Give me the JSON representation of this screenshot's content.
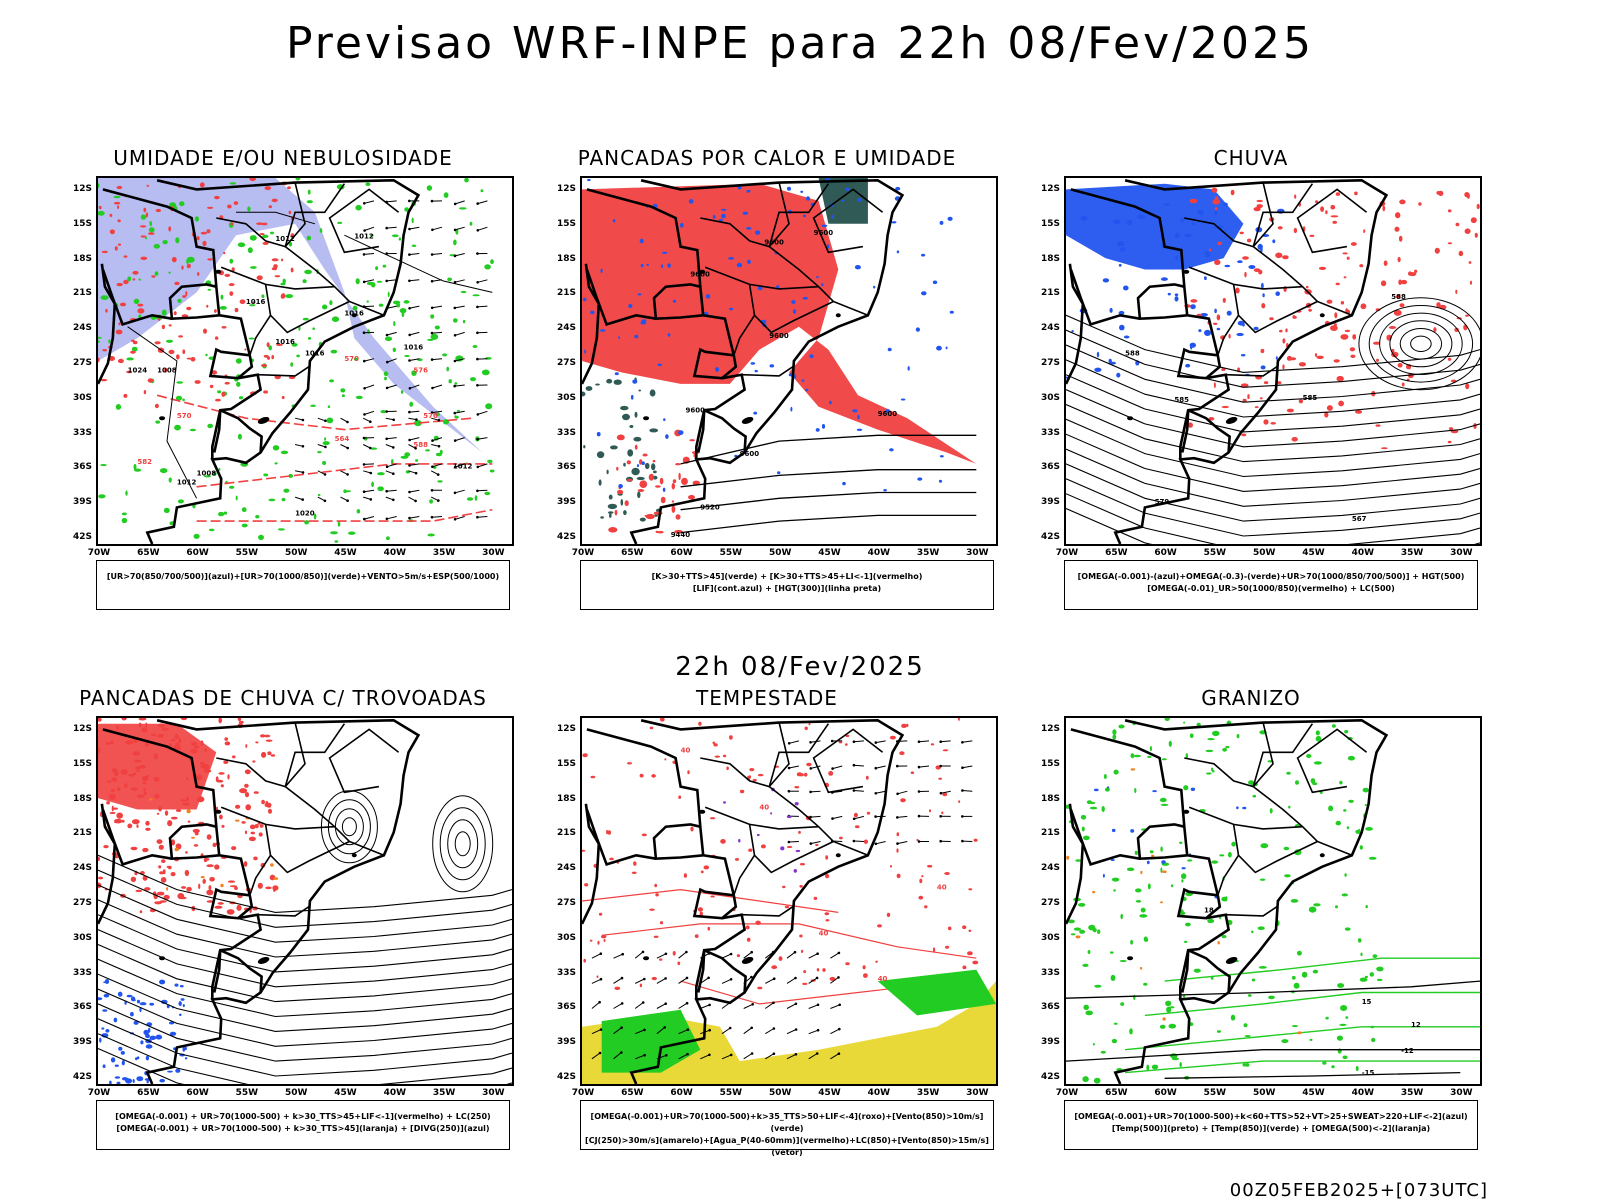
{
  "title": "Previsao WRF-INPE  para 22h 08/Fev/2025",
  "subtitle": "22h 08/Fev/2025",
  "footer": "00Z05FEB2025+[073UTC]",
  "axes": {
    "lat_labels": [
      "12S",
      "15S",
      "18S",
      "21S",
      "24S",
      "27S",
      "30S",
      "33S",
      "36S",
      "39S",
      "42S"
    ],
    "lon_labels": [
      "70W",
      "65W",
      "60W",
      "55W",
      "50W",
      "45W",
      "40W",
      "35W",
      "30W"
    ]
  },
  "colors": {
    "red": "#f04040",
    "green": "#22cc22",
    "blue": "#2255ee",
    "lavender": "#aab0ee",
    "dark_teal": "#2f5a55",
    "yellow": "#e8d838",
    "orange": "#f08020",
    "purple": "#8833cc"
  },
  "panels": [
    {
      "title": "UMIDADE E/OU NEBULOSIDADE",
      "legend_lines": [
        "[UR>70(850/700/500)](azul)+[UR>70(1000/850)](verde)+VENTO>5m/s+ESP(500/1000)"
      ],
      "contour_labels": [
        "1012",
        "1012",
        "1016",
        "1016",
        "1016",
        "1016",
        "1008",
        "1012",
        "1020",
        "1016",
        "1012",
        "1008",
        "1024",
        "582",
        "570",
        "576",
        "564",
        "588",
        "570",
        "570"
      ]
    },
    {
      "title": "PANCADAS POR CALOR E UMIDADE",
      "legend_lines": [
        "[K>30+TTS>45](verde) + [K>30+TTS>45+LI<-1](vermelho)",
        "[LIF](cont.azul) + [HGT(300)](linha preta)"
      ],
      "contour_labels": [
        "9600",
        "9600",
        "9600",
        "9600",
        "9600",
        "9600",
        "9520",
        "9440",
        "9600"
      ]
    },
    {
      "title": "CHUVA",
      "legend_lines": [
        "[OMEGA(-0.001)-(azul)+OMEGA(-0.3)-(verde)+UR>70(1000/850/700/500)] + HGT(500)",
        "[OMEGA(-0.01)_UR>50(1000/850)(vermelho) + LC(500)"
      ],
      "contour_labels": [
        "588",
        "588",
        "585",
        "585",
        "579",
        "567"
      ]
    },
    {
      "title": "PANCADAS DE CHUVA C/ TROVOADAS",
      "legend_lines": [
        "[OMEGA(-0.001) + UR>70(1000-500) + k>30_TTS>45+LIF<-1](vermelho) + LC(250)",
        "[OMEGA(-0.001) + UR>70(1000-500) + k>30_TTS>45](laranja) + [DIVG(250)](azul)"
      ],
      "contour_labels": []
    },
    {
      "title": "TEMPESTADE",
      "legend_lines": [
        "[OMEGA(-0.001)+UR>70(1000-500)+k>35_TTS>50+LIF<-4](roxo)+[Vento(850)>10m/s](verde)",
        "[CJ(250)>30m/s](amarelo)+[Agua_P(40-60mm)](vermelho)+LC(850)+[Vento(850)>15m/s](vetor)"
      ],
      "contour_labels": [
        "40",
        "40",
        "40",
        "40",
        "40"
      ]
    },
    {
      "title": "GRANIZO",
      "legend_lines": [
        "[OMEGA(-0.001)+UR>70(1000-500)+k<60+TTS>52+VT>25+SWEAT>220+LIF<-2](azul)",
        "[Temp(500)](preto) + [Temp(850)](verde) + [OMEGA(500)<-2](laranja)"
      ],
      "contour_labels": [
        "-12",
        "-15",
        "12",
        "15",
        "18"
      ]
    }
  ]
}
